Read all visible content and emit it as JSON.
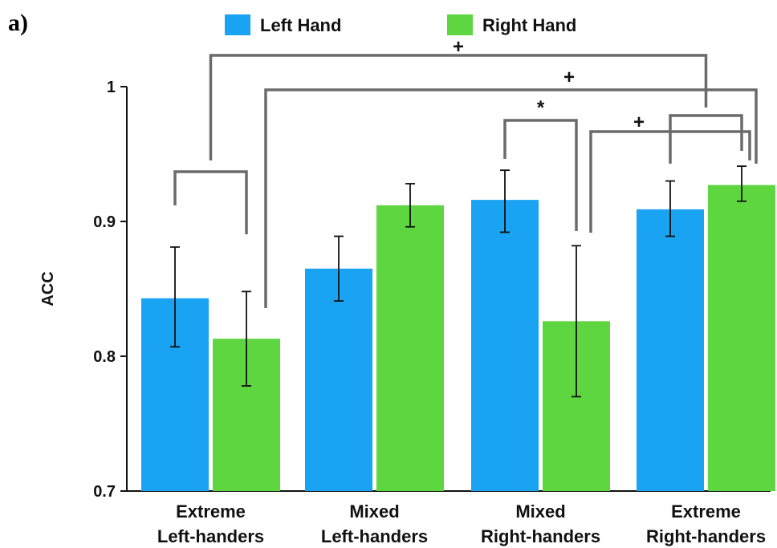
{
  "panel_label": "a)",
  "chart_data": {
    "type": "bar",
    "title": "",
    "xlabel": "",
    "ylabel": "ACC",
    "ylim": [
      0.7,
      1.0
    ],
    "yticks": [
      "0.7",
      "0.8",
      "0.9",
      "1"
    ],
    "categories": [
      [
        "Extreme",
        "Left-handers"
      ],
      [
        "Mixed",
        "Left-handers"
      ],
      [
        "Mixed",
        "Right-handers"
      ],
      [
        "Extreme",
        "Right-handers"
      ]
    ],
    "series": [
      {
        "name": "Left Hand",
        "color": "#1aa3f2",
        "values": [
          0.843,
          0.865,
          0.916,
          0.909
        ],
        "error_low": [
          0.807,
          0.841,
          0.892,
          0.889
        ],
        "error_high": [
          0.881,
          0.889,
          0.938,
          0.93
        ]
      },
      {
        "name": "Right Hand",
        "color": "#5ed63f",
        "values": [
          0.813,
          0.912,
          0.826,
          0.927
        ],
        "error_low": [
          0.778,
          0.896,
          0.77,
          0.915
        ],
        "error_high": [
          0.848,
          0.928,
          0.882,
          0.941
        ]
      }
    ],
    "legend_position": "top",
    "grid": false,
    "significance": [
      {
        "label": "",
        "from": "Extreme Left-handers / Left Hand",
        "to": "Extreme Left-handers / Right Hand"
      },
      {
        "label": "*",
        "from": "Mixed Right-handers / Left Hand",
        "to": "Mixed Right-handers / Right Hand"
      },
      {
        "label": "",
        "from": "Extreme Right-handers / Left Hand",
        "to": "Extreme Right-handers / Right Hand"
      },
      {
        "label": "+",
        "from": "Extreme Left-handers",
        "to": "Extreme Right-handers"
      },
      {
        "label": "+",
        "from": "Extreme Left-handers / Right Hand",
        "to": "Extreme Right-handers / Right Hand"
      },
      {
        "label": "+",
        "from": "Mixed Right-handers / Right Hand",
        "to": "Extreme Right-handers / Right Hand"
      }
    ]
  }
}
